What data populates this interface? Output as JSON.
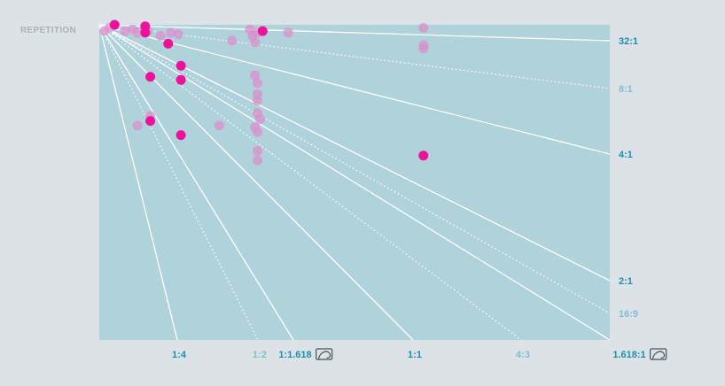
{
  "chart_data": {
    "type": "scatter",
    "title": "",
    "ylabel": "REPETITION",
    "xlabel": "",
    "colors": {
      "background": "#dde2e6",
      "plot": "#b0d2db",
      "highlight": "#ee1199",
      "faded": "#d98fcc",
      "label_strong": "#1b8fb0",
      "label_light": "#7dbfd4",
      "line": "#ffffff",
      "muted_title": "#a8b3ba"
    },
    "bottom_ratios": [
      {
        "label": "1:4",
        "style": "solid",
        "emphasis": "strong",
        "golden_icon": false
      },
      {
        "label": "1:2",
        "style": "dotted",
        "emphasis": "light",
        "golden_icon": false
      },
      {
        "label": "1:1.618",
        "style": "solid",
        "emphasis": "strong",
        "golden_icon": true
      },
      {
        "label": "1:1",
        "style": "solid",
        "emphasis": "strong",
        "golden_icon": false
      },
      {
        "label": "4:3",
        "style": "dotted",
        "emphasis": "light",
        "golden_icon": false
      },
      {
        "label": "1.618:1",
        "style": "solid",
        "emphasis": "strong",
        "golden_icon": true
      }
    ],
    "right_ratios": [
      {
        "label": "32:1",
        "style": "solid",
        "emphasis": "strong"
      },
      {
        "label": "8:1",
        "style": "dotted",
        "emphasis": "light"
      },
      {
        "label": "4:1",
        "style": "solid",
        "emphasis": "strong"
      },
      {
        "label": "2:1",
        "style": "solid",
        "emphasis": "strong"
      },
      {
        "label": "16:9",
        "style": "dotted",
        "emphasis": "light"
      }
    ],
    "points": [
      {
        "x": 0.01,
        "y": 0.98,
        "highlight": false
      },
      {
        "x": 0.02,
        "y": 0.99,
        "highlight": false
      },
      {
        "x": 0.03,
        "y": 1.0,
        "highlight": true
      },
      {
        "x": 0.05,
        "y": 0.98,
        "highlight": false
      },
      {
        "x": 0.065,
        "y": 0.985,
        "highlight": false
      },
      {
        "x": 0.075,
        "y": 0.975,
        "highlight": false
      },
      {
        "x": 0.09,
        "y": 0.995,
        "highlight": true
      },
      {
        "x": 0.09,
        "y": 0.975,
        "highlight": true
      },
      {
        "x": 0.095,
        "y": 0.98,
        "highlight": false
      },
      {
        "x": 0.12,
        "y": 0.965,
        "highlight": false
      },
      {
        "x": 0.14,
        "y": 0.975,
        "highlight": false
      },
      {
        "x": 0.135,
        "y": 0.94,
        "highlight": true
      },
      {
        "x": 0.155,
        "y": 0.97,
        "highlight": false
      },
      {
        "x": 0.16,
        "y": 0.87,
        "highlight": true
      },
      {
        "x": 0.16,
        "y": 0.825,
        "highlight": true
      },
      {
        "x": 0.1,
        "y": 0.835,
        "highlight": true
      },
      {
        "x": 0.1,
        "y": 0.71,
        "highlight": false
      },
      {
        "x": 0.1,
        "y": 0.695,
        "highlight": true
      },
      {
        "x": 0.075,
        "y": 0.68,
        "highlight": false
      },
      {
        "x": 0.16,
        "y": 0.65,
        "highlight": true
      },
      {
        "x": 0.235,
        "y": 0.68,
        "highlight": false
      },
      {
        "x": 0.26,
        "y": 0.95,
        "highlight": false
      },
      {
        "x": 0.295,
        "y": 0.985,
        "highlight": false
      },
      {
        "x": 0.3,
        "y": 0.965,
        "highlight": false
      },
      {
        "x": 0.31,
        "y": 0.975,
        "highlight": false
      },
      {
        "x": 0.305,
        "y": 0.945,
        "highlight": false
      },
      {
        "x": 0.32,
        "y": 0.98,
        "highlight": true
      },
      {
        "x": 0.37,
        "y": 0.975,
        "highlight": false
      },
      {
        "x": 0.305,
        "y": 0.84,
        "highlight": false
      },
      {
        "x": 0.31,
        "y": 0.815,
        "highlight": false
      },
      {
        "x": 0.31,
        "y": 0.78,
        "highlight": false
      },
      {
        "x": 0.31,
        "y": 0.76,
        "highlight": false
      },
      {
        "x": 0.31,
        "y": 0.72,
        "highlight": false
      },
      {
        "x": 0.315,
        "y": 0.7,
        "highlight": false
      },
      {
        "x": 0.305,
        "y": 0.675,
        "highlight": false
      },
      {
        "x": 0.31,
        "y": 0.66,
        "highlight": false
      },
      {
        "x": 0.31,
        "y": 0.6,
        "highlight": false
      },
      {
        "x": 0.31,
        "y": 0.57,
        "highlight": false
      },
      {
        "x": 0.635,
        "y": 0.99,
        "highlight": false
      },
      {
        "x": 0.635,
        "y": 0.935,
        "highlight": false
      },
      {
        "x": 0.635,
        "y": 0.925,
        "highlight": false
      },
      {
        "x": 0.635,
        "y": 0.585,
        "highlight": true
      }
    ]
  }
}
